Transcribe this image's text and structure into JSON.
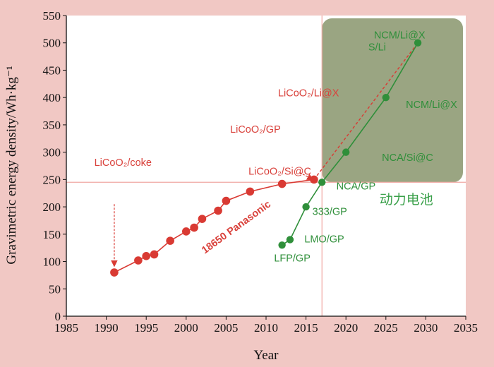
{
  "chart_data": {
    "type": "scatter",
    "xlabel": "Year",
    "ylabel": "Gravimetric energy density/Wh·kg⁻¹",
    "xlim": [
      1985,
      2035
    ],
    "ylim": [
      0,
      550
    ],
    "x_ticks": [
      "1985",
      "1990",
      "1995",
      "2000",
      "2005",
      "2010",
      "2015",
      "2020",
      "2025",
      "2030",
      "2035"
    ],
    "y_ticks": [
      "0",
      "50",
      "100",
      "150",
      "200",
      "250",
      "300",
      "350",
      "400",
      "450",
      "500",
      "550"
    ],
    "grid": false,
    "background_color": "#f1c8c4",
    "plot_area_color": "#ffffff",
    "region": {
      "x": [
        2017,
        2035
      ],
      "y": [
        245,
        550
      ],
      "color": "#9aa582"
    },
    "reference_lines": {
      "x": 2017,
      "y": 245,
      "color": "#f0a8a2"
    },
    "series": [
      {
        "color": "#d93a33",
        "points": [
          [
            1991,
            80
          ],
          [
            1994,
            102
          ],
          [
            1995,
            110
          ],
          [
            1996,
            113
          ],
          [
            1998,
            138
          ],
          [
            2000,
            155
          ],
          [
            2001,
            162
          ],
          [
            2002,
            178
          ],
          [
            2004,
            193
          ],
          [
            2005,
            211
          ],
          [
            2008,
            228
          ],
          [
            2012,
            242
          ],
          [
            2016,
            250
          ]
        ]
      },
      {
        "color": "#2f8f3a",
        "points": [
          [
            2012,
            130
          ],
          [
            2013,
            140
          ],
          [
            2015,
            200
          ],
          [
            2017,
            245
          ],
          [
            2020,
            300
          ],
          [
            2025,
            400
          ],
          [
            2029,
            500
          ]
        ]
      }
    ],
    "annotations": [
      {
        "text": "LiCoO₂/coke",
        "color": "red",
        "x": 1988.5,
        "y": 275
      },
      {
        "text": "18650 Panasonic",
        "color": "red",
        "x": 2006.5,
        "y": 158
      },
      {
        "text": "LiCoO₂/GP",
        "color": "red",
        "x": 2005.5,
        "y": 336
      },
      {
        "text": "LiCoO₂/Si@C",
        "color": "red",
        "x": 2007.8,
        "y": 259
      },
      {
        "text": "LiCoO₂/Li@X",
        "color": "red",
        "x": 2011.5,
        "y": 402
      },
      {
        "text": "NCM/Li@X",
        "color": "green",
        "x": 2023.5,
        "y": 508
      },
      {
        "text": "S/Li",
        "color": "green",
        "x": 2022.8,
        "y": 486
      },
      {
        "text": "NCM/Li@X",
        "color": "green",
        "x": 2027.5,
        "y": 381
      },
      {
        "text": "NCA/Si@C",
        "color": "green",
        "x": 2024.5,
        "y": 284
      },
      {
        "text": "NCA/GP",
        "color": "green",
        "x": 2018.8,
        "y": 232
      },
      {
        "text": "333/GP",
        "color": "green",
        "x": 2015.8,
        "y": 185
      },
      {
        "text": "LMO/GP",
        "color": "green",
        "x": 2014.8,
        "y": 135
      },
      {
        "text": "LFP/GP",
        "color": "green",
        "x": 2011.0,
        "y": 100
      },
      {
        "text": "动力电池",
        "color": "green-cn",
        "x": 2024.2,
        "y": 205
      }
    ]
  }
}
